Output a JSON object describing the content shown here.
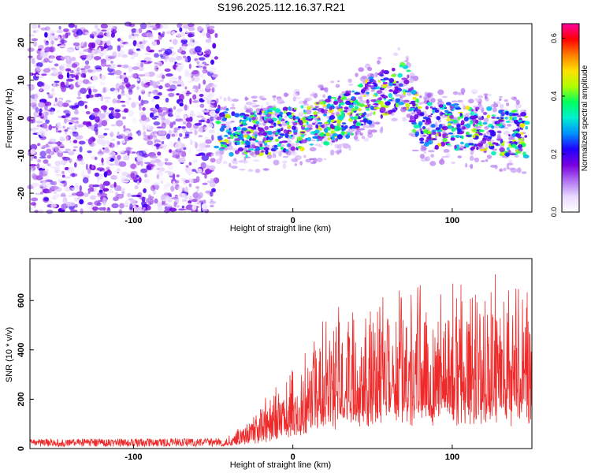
{
  "title": "S196.2025.112.16.37.R21",
  "chart_data": [
    {
      "type": "heatmap",
      "xlabel": "Height of straight line (km)",
      "ylabel": "Frequency (Hz)",
      "xlim": [
        -165,
        150
      ],
      "ylim": [
        -25,
        25
      ],
      "xticks": [
        -100,
        0,
        100
      ],
      "yticks": [
        -20,
        -10,
        0,
        10,
        20
      ],
      "colorbar": {
        "label": "Normalized spectral amplitude",
        "range": [
          0,
          0.65
        ],
        "ticks": [
          "0.0",
          "0.2",
          "0.4",
          "0.6"
        ],
        "colors": [
          "#ffffff",
          "#e8d8ff",
          "#b070f0",
          "#7a00e0",
          "#2000ff",
          "#0090ff",
          "#00f0d0",
          "#00ff60",
          "#b0ff00",
          "#ffe000",
          "#ff8000",
          "#ff0000",
          "#ff00a0"
        ]
      },
      "noise_region": {
        "x": [
          -165,
          -48
        ],
        "freq": [
          -25,
          25
        ]
      },
      "signal_track": {
        "x": [
          -48,
          -35,
          -20,
          -5,
          5,
          20,
          35,
          50,
          60,
          68,
          72,
          76,
          80,
          90,
          100,
          110,
          120,
          130,
          140,
          147
        ],
        "freq": [
          -2,
          -5,
          -4,
          -3,
          -3,
          -1,
          1,
          5,
          7,
          9,
          8,
          2,
          -1,
          -3,
          -2,
          -3,
          -3,
          -4,
          -4,
          -5
        ],
        "width_hz": 6
      }
    },
    {
      "type": "line",
      "xlabel": "Height of straight line (km)",
      "ylabel": "SNR (10 * v/v)",
      "xlim": [
        -165,
        150
      ],
      "ylim": [
        0,
        770
      ],
      "xticks": [
        -100,
        0,
        100
      ],
      "yticks": [
        0,
        200,
        400,
        600
      ],
      "color": "#ee2a2a",
      "envelope": {
        "x": [
          -165,
          -45,
          -35,
          -25,
          -10,
          0,
          10,
          25,
          40,
          60,
          80,
          100,
          120,
          140,
          150
        ],
        "max": [
          30,
          35,
          90,
          150,
          250,
          330,
          420,
          560,
          620,
          640,
          660,
          660,
          690,
          650,
          640
        ],
        "base": [
          10,
          12,
          20,
          30,
          50,
          70,
          90,
          120,
          140,
          150,
          150,
          150,
          150,
          150,
          150
        ]
      }
    }
  ]
}
